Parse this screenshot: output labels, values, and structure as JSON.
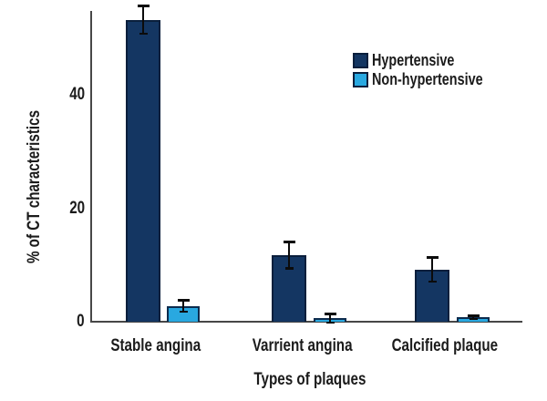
{
  "chart_data": {
    "type": "bar",
    "title": "",
    "xlabel": "Types of plaques",
    "ylabel": "% of CT characteristics",
    "categories": [
      "Stable angina",
      "Varrient angina",
      "Calcified plaque"
    ],
    "series": [
      {
        "name": "Hypertensive",
        "color": "#143662",
        "border_color": "#0a1f3c",
        "values": [
          53.2,
          11.7,
          9.2
        ],
        "errors": [
          2.4,
          2.3,
          2.1
        ]
      },
      {
        "name": "Non-hypertensive",
        "color": "#29a8e0",
        "border_color": "#0d2b4d",
        "values": [
          2.8,
          0.6,
          0.8
        ],
        "errors": [
          1.0,
          0.7,
          0.3
        ]
      }
    ],
    "yticks": [
      0,
      20,
      40
    ],
    "ylim": [
      0,
      54.8
    ],
    "grid": false,
    "error_bars": true,
    "legend_position": "upper-right",
    "axis_color": "#474747",
    "error_bar_color": "#0b0b0b",
    "background_color": "#ffffff"
  }
}
